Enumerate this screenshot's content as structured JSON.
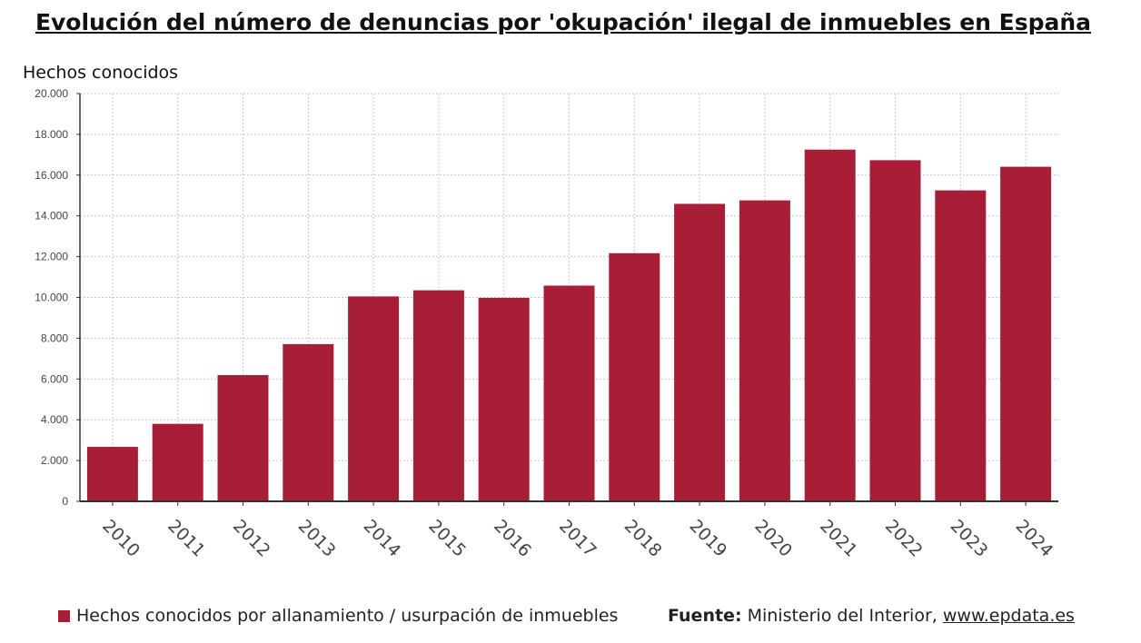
{
  "chart_data": {
    "type": "bar",
    "title": "Evolución del número de denuncias por 'okupación' ilegal de inmuebles en España",
    "ylabel": "Hechos conocidos",
    "xlabel": "",
    "categories": [
      "2010",
      "2011",
      "2012",
      "2013",
      "2014",
      "2015",
      "2016",
      "2017",
      "2018",
      "2019",
      "2020",
      "2021",
      "2022",
      "2023",
      "2024"
    ],
    "series": [
      {
        "name": "Hechos conocidos por allanamiento / usurpación de inmuebles",
        "values": [
          2670,
          3800,
          6190,
          7710,
          10050,
          10350,
          9980,
          10580,
          12170,
          14590,
          14760,
          17250,
          16730,
          15250,
          16410
        ],
        "color": "#A81E37"
      }
    ],
    "ylim": [
      0,
      20000
    ],
    "yticks": [
      0,
      2000,
      4000,
      6000,
      8000,
      10000,
      12000,
      14000,
      16000,
      18000,
      20000
    ],
    "ytick_labels": [
      "0",
      "2.000",
      "4.000",
      "6.000",
      "8.000",
      "10.000",
      "12.000",
      "14.000",
      "16.000",
      "18.000",
      "20.000"
    ],
    "grid": true,
    "legend_position": "bottom-left"
  },
  "source": {
    "label": "Fuente:",
    "text": "Ministerio del Interior,",
    "link": "www.epdata.es"
  }
}
